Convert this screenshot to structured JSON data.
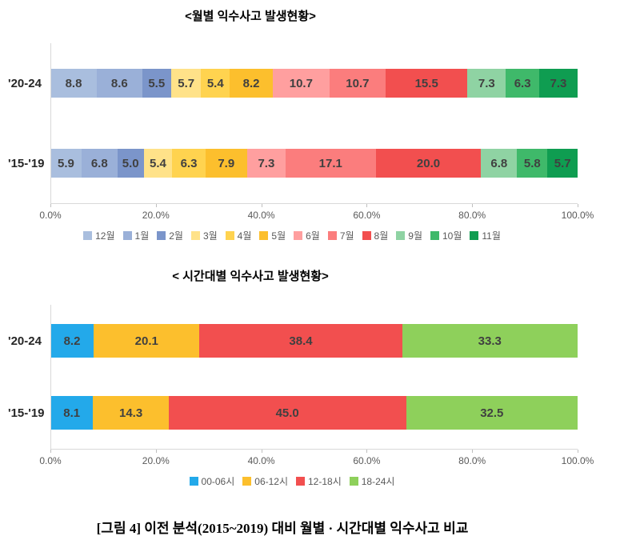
{
  "caption": "[그림 4] 이전 분석(2015~2019) 대비 월별 · 시간대별 익수사고 비교",
  "chart_data": [
    {
      "type": "bar",
      "subtype": "100%-stacked-horizontal",
      "title": "<월별 익수사고 발생현황>",
      "categories": [
        "12월",
        "1월",
        "2월",
        "3월",
        "4월",
        "5월",
        "6월",
        "7월",
        "8월",
        "9월",
        "10월",
        "11월"
      ],
      "colors": [
        "#a9bede",
        "#9ab0d8",
        "#7b95ca",
        "#ffe289",
        "#ffd34f",
        "#fcbf2d",
        "#ff9f9f",
        "#fb7d7d",
        "#f24f4f",
        "#8fd3a3",
        "#3fb96a",
        "#0f9d51"
      ],
      "rows": [
        {
          "label": "'20-24",
          "values": [
            8.8,
            8.6,
            5.5,
            5.7,
            5.4,
            8.2,
            10.7,
            10.7,
            15.5,
            7.3,
            6.3,
            7.3
          ]
        },
        {
          "label": "'15-'19",
          "values": [
            5.9,
            6.8,
            5.0,
            5.4,
            6.3,
            7.9,
            7.3,
            17.1,
            20.0,
            6.8,
            5.8,
            5.7
          ]
        }
      ],
      "x_ticks": [
        "0.0%",
        "20.0%",
        "40.0%",
        "60.0%",
        "80.0%",
        "100.0%"
      ],
      "xlim": [
        0,
        100
      ],
      "legend_position": "bottom"
    },
    {
      "type": "bar",
      "subtype": "100%-stacked-horizontal",
      "title": "< 시간대별 익수사고 발생현황>",
      "categories": [
        "00-06시",
        "06-12시",
        "12-18시",
        "18-24시"
      ],
      "colors": [
        "#23a9ea",
        "#fcbf2d",
        "#f24f4f",
        "#8ed05b"
      ],
      "rows": [
        {
          "label": "'20-24",
          "values": [
            8.2,
            20.1,
            38.4,
            33.3
          ]
        },
        {
          "label": "'15-'19",
          "values": [
            8.1,
            14.3,
            45.0,
            32.5
          ]
        }
      ],
      "x_ticks": [
        "0.0%",
        "20.0%",
        "40.0%",
        "60.0%",
        "80.0%",
        "100.0%"
      ],
      "xlim": [
        0,
        100
      ],
      "legend_position": "bottom"
    }
  ]
}
